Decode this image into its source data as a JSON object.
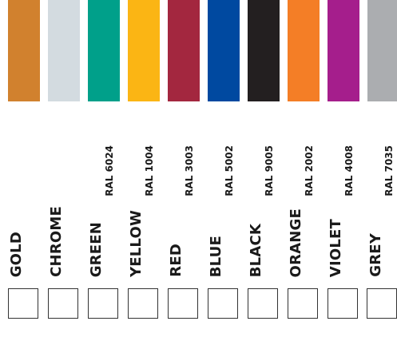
{
  "colors": [
    {
      "name": "GOLD",
      "ral": "",
      "hex": "#D1812E"
    },
    {
      "name": "CHROME",
      "ral": "",
      "hex": "#D3DBE0"
    },
    {
      "name": "GREEN",
      "ral": "RAL 6024",
      "hex": "#00A08A"
    },
    {
      "name": "YELLOW",
      "ral": "RAL 1004",
      "hex": "#FBB514"
    },
    {
      "name": "RED",
      "ral": "RAL 3003",
      "hex": "#A3273F"
    },
    {
      "name": "BLUE",
      "ral": "RAL 5002",
      "hex": "#0049A0"
    },
    {
      "name": "BLACK",
      "ral": "RAL 9005",
      "hex": "#231F20"
    },
    {
      "name": "ORANGE",
      "ral": "RAL 2002",
      "hex": "#F47E26"
    },
    {
      "name": "VIOLET",
      "ral": "RAL 4008",
      "hex": "#A51E8C"
    },
    {
      "name": "GREY",
      "ral": "RAL 7035",
      "hex": "#ABADB0"
    }
  ]
}
